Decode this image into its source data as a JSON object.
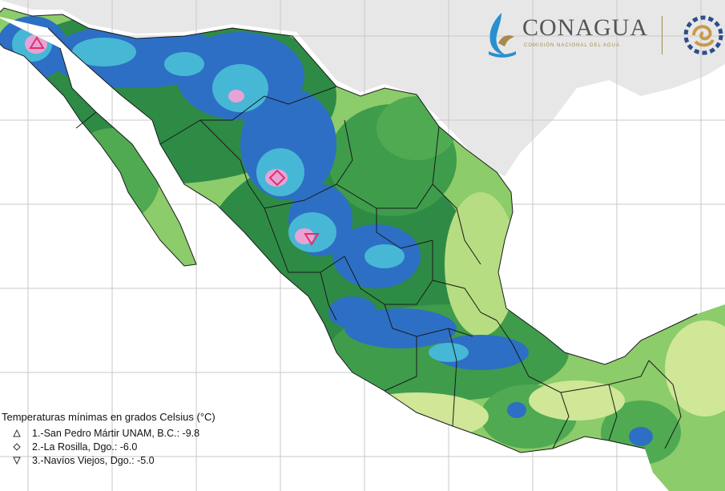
{
  "brand": {
    "name": "CONAGUA",
    "subtitle": "COMISIÓN NACIONAL DEL AGUA"
  },
  "legend": {
    "title": "Temperaturas mínimas en grados Celsius (°C)",
    "items": [
      {
        "symbol": "triangle-up-icon",
        "label": "1.-San Pedro Mártir UNAM, B.C.: -9.8"
      },
      {
        "symbol": "diamond-icon",
        "label": "2.-La Rosilla, Dgo.: -6.0"
      },
      {
        "symbol": "triangle-down-icon",
        "label": "3.-Navíos Viejos, Dgo.: -5.0"
      }
    ]
  },
  "colors": {
    "ocean": "#ffffff",
    "land_outside": "#e7e7e7",
    "grid": "#c9c9c9",
    "dark_green": "#2e8b45",
    "mid_green": "#4faa52",
    "light_green": "#8ccc6a",
    "yellow_green": "#cfe796",
    "blue": "#2d6fc4",
    "dark_blue": "#1f4fa3",
    "cyan": "#47b7d6",
    "pink": "#e7a3d6",
    "marker": "#e0306b",
    "borders": "#1a1a1a",
    "brand_text": "#555555",
    "brand_gold": "#a58a4d"
  }
}
